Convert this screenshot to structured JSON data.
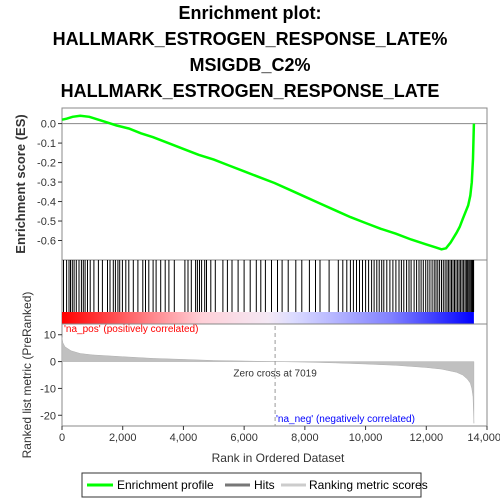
{
  "chart_data": {
    "type": "line",
    "title_lines": [
      "Enrichment plot:",
      "HALLMARK_ESTROGEN_RESPONSE_LATE%",
      "MSIGDB_C2%",
      "HALLMARK_ESTROGEN_RESPONSE_LATE"
    ],
    "xlabel": "Rank in Ordered Dataset",
    "x_ticks": [
      0,
      2000,
      4000,
      6000,
      8000,
      10000,
      12000,
      14000
    ],
    "x_tick_labels": [
      "0",
      "2,000",
      "4,000",
      "6,000",
      "8,000",
      "10,000",
      "12,000",
      "14,000"
    ],
    "xlim": [
      0,
      14000
    ],
    "top_panel": {
      "ylabel": "Enrichment score (ES)",
      "ylim": [
        -0.7,
        0.08
      ],
      "y_ticks": [
        0.0,
        -0.1,
        -0.2,
        -0.3,
        -0.4,
        -0.5,
        -0.6
      ],
      "y_tick_labels": [
        "0.0",
        "-0.1",
        "-0.2",
        "-0.3",
        "-0.4",
        "-0.5",
        "-0.6"
      ],
      "es_curve": {
        "x": [
          0,
          150,
          350,
          600,
          900,
          1200,
          1500,
          1800,
          2200,
          2600,
          3000,
          3500,
          4000,
          4500,
          5000,
          5500,
          6000,
          6500,
          7000,
          7500,
          8000,
          8500,
          9000,
          9500,
          10000,
          10500,
          11000,
          11500,
          12000,
          12300,
          12500,
          12650,
          12800,
          13000,
          13100,
          13200,
          13300,
          13380,
          13450,
          13500,
          13540,
          13570
        ],
        "y": [
          0.02,
          0.025,
          0.035,
          0.04,
          0.035,
          0.02,
          0.005,
          -0.01,
          -0.025,
          -0.05,
          -0.07,
          -0.1,
          -0.13,
          -0.16,
          -0.185,
          -0.215,
          -0.245,
          -0.275,
          -0.305,
          -0.34,
          -0.375,
          -0.41,
          -0.445,
          -0.48,
          -0.51,
          -0.54,
          -0.565,
          -0.595,
          -0.62,
          -0.635,
          -0.645,
          -0.64,
          -0.61,
          -0.56,
          -0.53,
          -0.49,
          -0.45,
          -0.42,
          -0.37,
          -0.3,
          -0.18,
          0.0
        ]
      }
    },
    "hits_panel": {
      "gene_positions": [
        50,
        150,
        230,
        280,
        340,
        400,
        470,
        560,
        640,
        700,
        760,
        840,
        930,
        1050,
        1200,
        1330,
        1500,
        1580,
        1690,
        1760,
        1840,
        1900,
        1990,
        2100,
        2200,
        2350,
        2500,
        2660,
        2750,
        2860,
        3000,
        3100,
        3250,
        3400,
        3520,
        3700,
        4050,
        4150,
        4260,
        4400,
        4460,
        4530,
        4600,
        4700,
        4760,
        4900,
        5050,
        5300,
        5450,
        5600,
        5800,
        6000,
        6200,
        6400,
        6550,
        6700,
        6900,
        7100,
        7250,
        7450,
        7700,
        7900,
        8150,
        8350,
        8500,
        8800,
        9100,
        9250,
        9380,
        9500,
        9600,
        9700,
        9800,
        9900,
        10000,
        10100,
        10200,
        10280,
        10370,
        10450,
        10530,
        10600,
        10700,
        10800,
        10900,
        11000,
        11100,
        11180,
        11260,
        11350,
        11430,
        11500,
        11600,
        11680,
        11760,
        11830,
        11900,
        11980,
        12050,
        12120,
        12190,
        12260,
        12320,
        12380,
        12440,
        12500,
        12560,
        12620,
        12680,
        12730,
        12780,
        12830,
        12880,
        12930,
        12980,
        13030,
        13080,
        13130,
        13180,
        13230,
        13280,
        13320,
        13360,
        13400,
        13440,
        13480,
        13510,
        13540,
        13560
      ]
    },
    "rank_panel": {
      "ylabel": "Ranked list metric (PreRanked)",
      "ylim": [
        -24,
        14
      ],
      "y_ticks": [
        10,
        0,
        -10,
        -20
      ],
      "y_tick_labels": [
        "10",
        "0",
        "-10",
        "-20"
      ],
      "metric_curve": {
        "x": [
          0,
          30,
          100,
          300,
          600,
          1000,
          2000,
          3000,
          4000,
          5000,
          6000,
          7019,
          8000,
          9000,
          10000,
          11000,
          12000,
          12500,
          13000,
          13200,
          13350,
          13450,
          13500,
          13540,
          13570
        ],
        "y": [
          9,
          7,
          5.5,
          4,
          3,
          2.5,
          1.8,
          1.2,
          0.8,
          0.4,
          0.2,
          0,
          -0.2,
          -0.5,
          -0.9,
          -1.4,
          -2.2,
          -2.8,
          -4,
          -5,
          -6.5,
          -8,
          -10,
          -13,
          -23
        ]
      },
      "zero_cross_label": "Zero cross at 7019",
      "zero_cross_x": 7019,
      "pos_label": "'na_pos' (positively correlated)",
      "neg_label": "'na_neg' (negatively correlated)"
    },
    "legend": {
      "placement": "bottom",
      "items": [
        "Enrichment profile",
        "Hits",
        "Ranking metric scores"
      ]
    },
    "colors": {
      "enrichment": "#00ff00",
      "hits": "#000000",
      "metric": "#c0c0c0",
      "zero_cross": "#999999",
      "pos_label": "#ff0000",
      "neg_label": "#0000ff",
      "frame": "#888888"
    }
  }
}
